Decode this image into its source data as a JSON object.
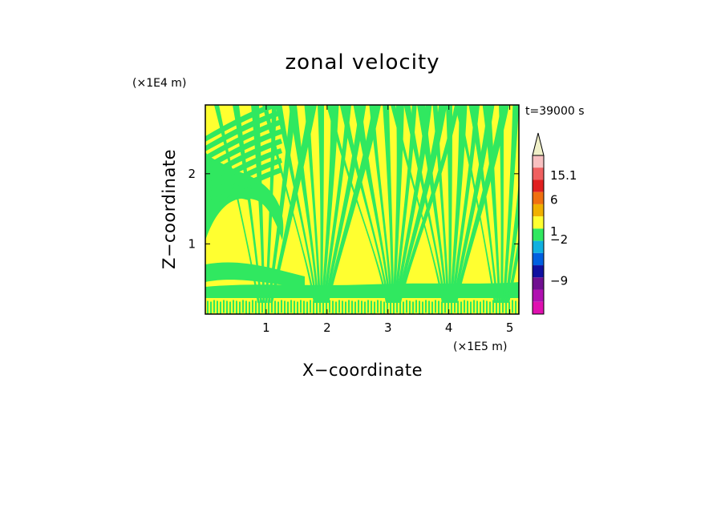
{
  "chart_data": {
    "type": "heatmap",
    "title": "zonal velocity",
    "xlabel": "X−coordinate",
    "ylabel": "Z−coordinate",
    "x_unit": "(×1E5 m)",
    "y_unit": "(×1E4 m)",
    "time_label": "t=39000 s",
    "xlim": [
      0,
      5.15
    ],
    "ylim": [
      0,
      2.98
    ],
    "x_ticks": [
      1,
      2,
      3,
      4,
      5
    ],
    "y_ticks": [
      1,
      2
    ],
    "colorbar": {
      "colors": [
        "#f0f0c8",
        "#f8c0c0",
        "#f06060",
        "#e02020",
        "#f07010",
        "#f0b000",
        "#ffff30",
        "#30e860",
        "#10b0e0",
        "#0060e0",
        "#1010a0",
        "#701090",
        "#b010b0",
        "#e010b0"
      ],
      "labels": [
        {
          "text": "15.1",
          "level": 0.875
        },
        {
          "text": "6",
          "level": 0.72
        },
        {
          "text": "1",
          "level": 0.52
        },
        {
          "text": "−2",
          "level": 0.47
        },
        {
          "text": "−9",
          "level": 0.21
        }
      ],
      "extend": "max"
    },
    "field_colors": {
      "positive": "#ffff30",
      "near_zero": "#30e860"
    }
  }
}
